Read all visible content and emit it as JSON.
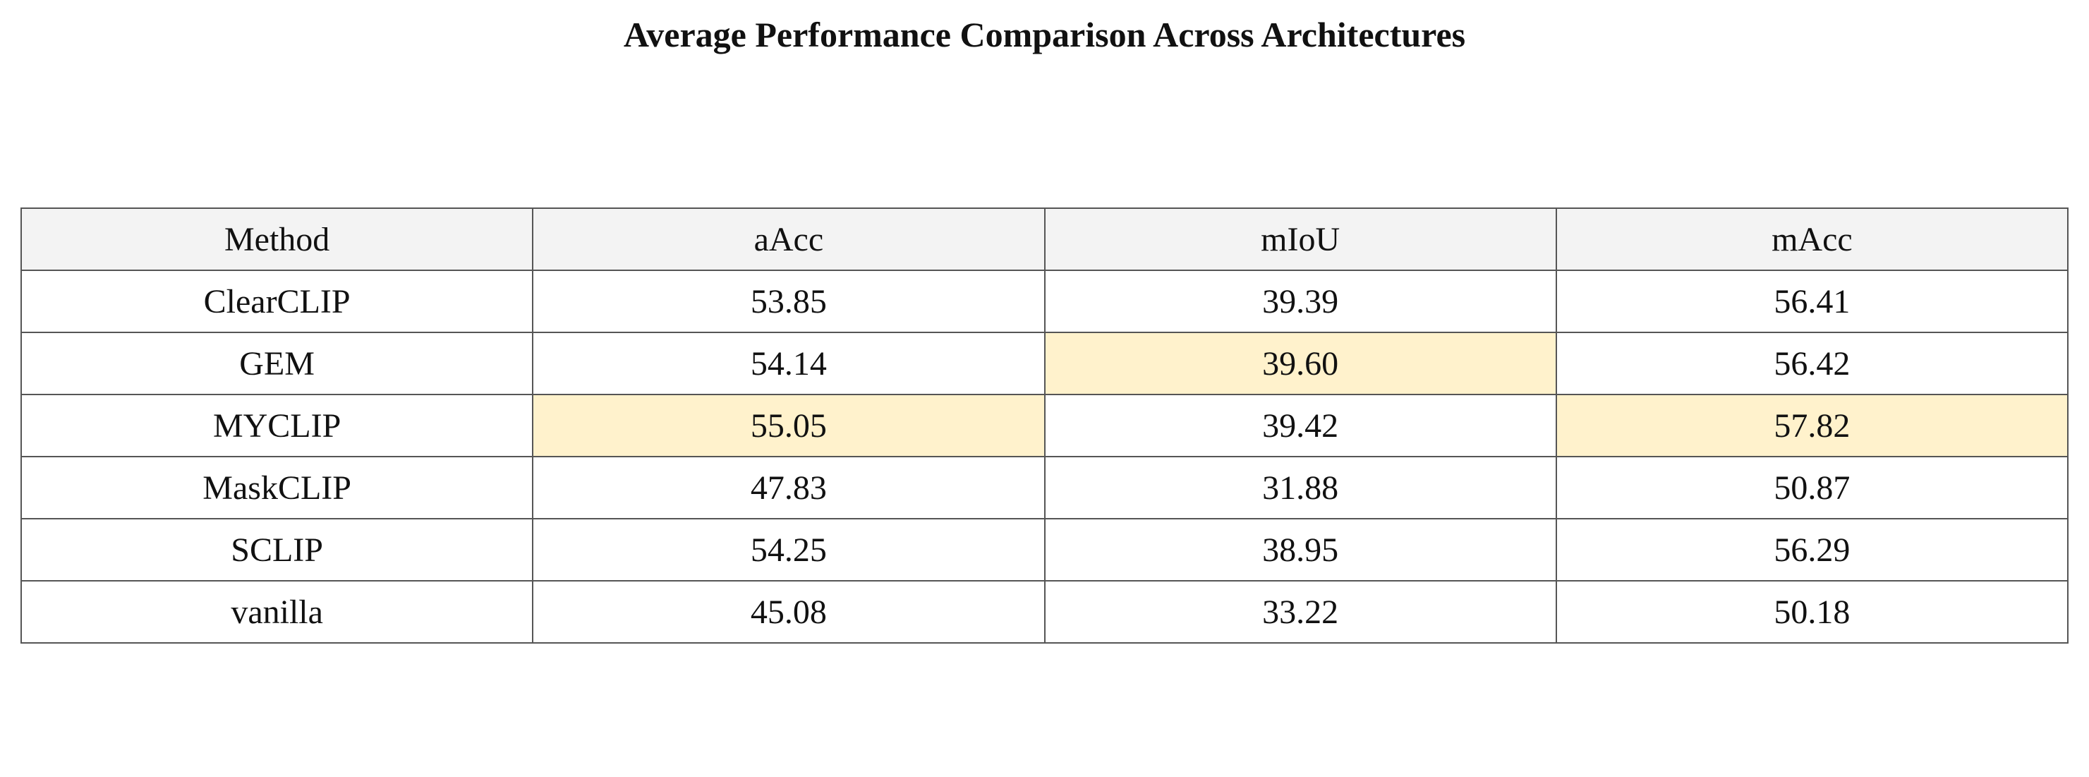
{
  "chart_data": {
    "type": "table",
    "title": "Average Performance Comparison Across Architectures",
    "columns": [
      "Method",
      "aAcc",
      "mIoU",
      "mAcc"
    ],
    "rows": [
      {
        "method": "ClearCLIP",
        "values": [
          "53.85",
          "39.39",
          "56.41"
        ],
        "highlight": [
          false,
          false,
          false
        ]
      },
      {
        "method": "GEM",
        "values": [
          "54.14",
          "39.60",
          "56.42"
        ],
        "highlight": [
          false,
          true,
          false
        ]
      },
      {
        "method": "MYCLIP",
        "values": [
          "55.05",
          "39.42",
          "57.82"
        ],
        "highlight": [
          true,
          false,
          true
        ]
      },
      {
        "method": "MaskCLIP",
        "values": [
          "47.83",
          "31.88",
          "50.87"
        ],
        "highlight": [
          false,
          false,
          false
        ]
      },
      {
        "method": "SCLIP",
        "values": [
          "54.25",
          "38.95",
          "56.29"
        ],
        "highlight": [
          false,
          false,
          false
        ]
      },
      {
        "method": "vanilla",
        "values": [
          "45.08",
          "33.22",
          "50.18"
        ],
        "highlight": [
          false,
          false,
          false
        ]
      }
    ],
    "colors": {
      "header_background": "#f3f3f3",
      "highlight_background": "#fff2cc",
      "border": "#555555"
    }
  }
}
